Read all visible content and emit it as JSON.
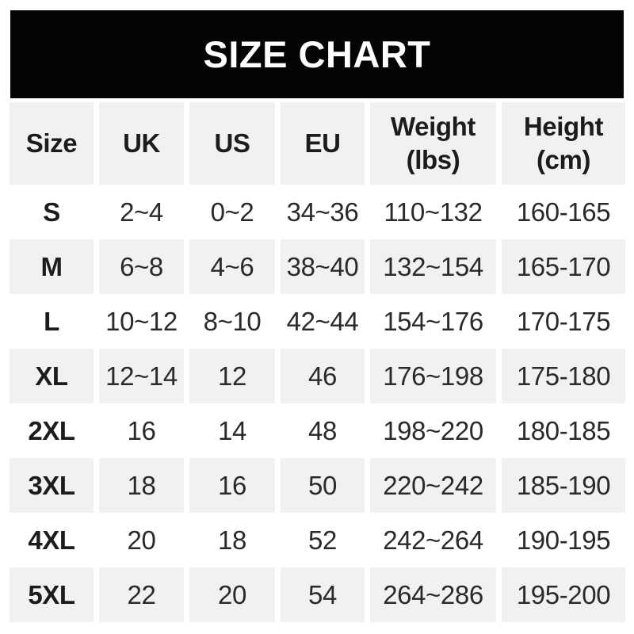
{
  "banner": {
    "title": "SIZE CHART",
    "bg_color": "#040404",
    "text_color": "#ffffff"
  },
  "style": {
    "row_alt_color": "#f1f1f2",
    "row_plain_color": "#ffffff",
    "header_text_color": "#1c1c1e",
    "value_text_color": "#2a2a2c"
  },
  "chart_data": {
    "type": "table",
    "title": "SIZE CHART",
    "columns": [
      {
        "label": "Size",
        "sub": ""
      },
      {
        "label": "UK",
        "sub": ""
      },
      {
        "label": "US",
        "sub": ""
      },
      {
        "label": "EU",
        "sub": ""
      },
      {
        "label": "Weight",
        "sub": "(lbs)"
      },
      {
        "label": "Height",
        "sub": "(cm)"
      }
    ],
    "rows": [
      {
        "size": "S",
        "values": [
          "2~4",
          "0~2",
          "34~36",
          "110~132",
          "160-165"
        ]
      },
      {
        "size": "M",
        "values": [
          "6~8",
          "4~6",
          "38~40",
          "132~154",
          "165-170"
        ]
      },
      {
        "size": "L",
        "values": [
          "10~12",
          "8~10",
          "42~44",
          "154~176",
          "170-175"
        ]
      },
      {
        "size": "XL",
        "values": [
          "12~14",
          "12",
          "46",
          "176~198",
          "175-180"
        ]
      },
      {
        "size": "2XL",
        "values": [
          "16",
          "14",
          "48",
          "198~220",
          "180-185"
        ]
      },
      {
        "size": "3XL",
        "values": [
          "18",
          "16",
          "50",
          "220~242",
          "185-190"
        ]
      },
      {
        "size": "4XL",
        "values": [
          "20",
          "18",
          "52",
          "242~264",
          "190-195"
        ]
      },
      {
        "size": "5XL",
        "values": [
          "22",
          "20",
          "54",
          "264~286",
          "195-200"
        ]
      }
    ]
  }
}
